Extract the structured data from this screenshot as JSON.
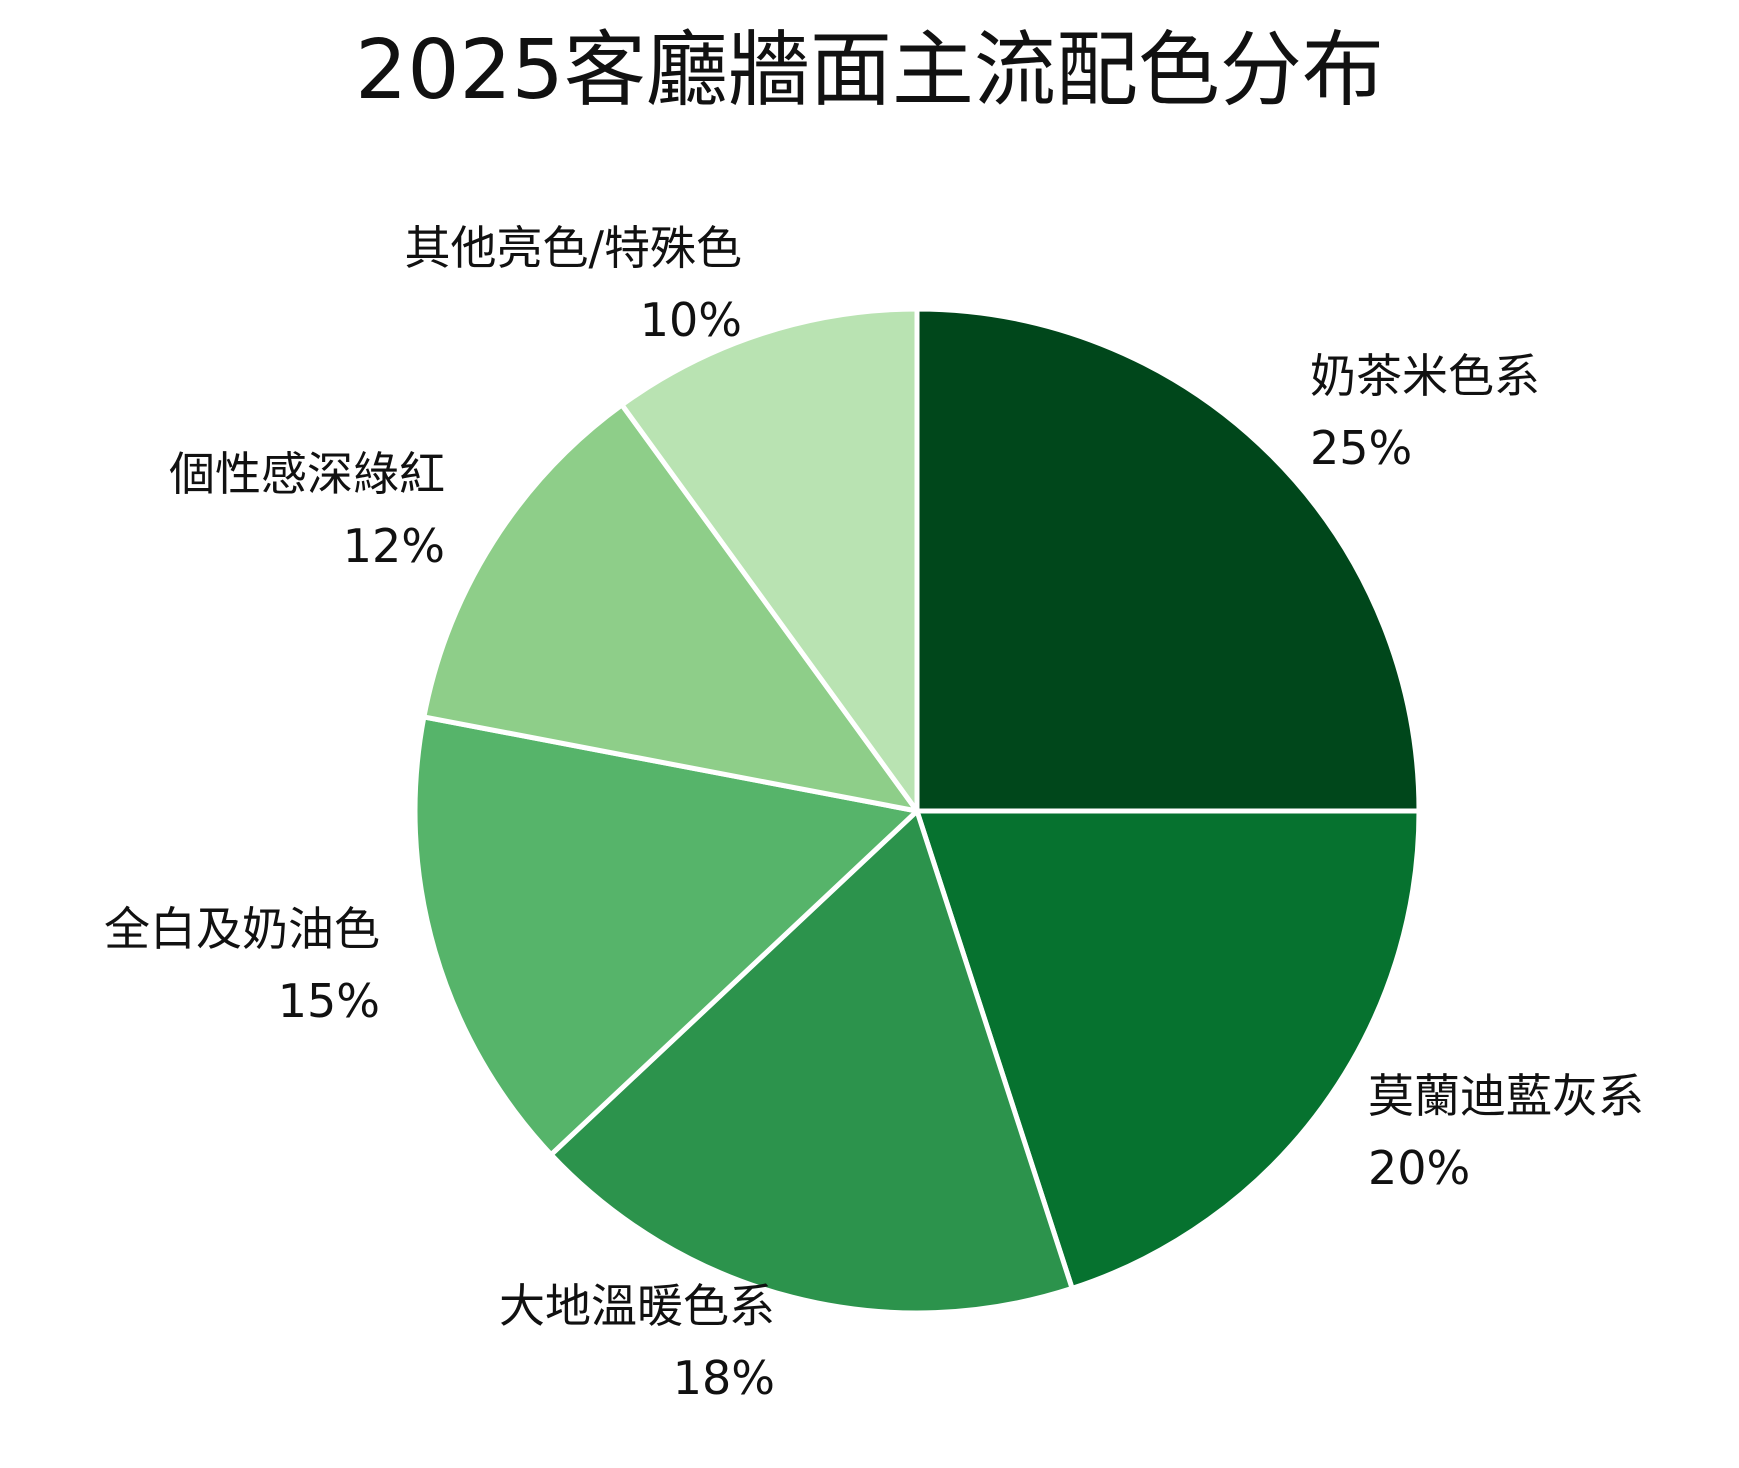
{
  "chart_data": {
    "type": "pie",
    "title": "2025客廳牆面主流配色分布",
    "unit": "%",
    "start_angle_deg": 90,
    "direction": "clockwise",
    "slices": [
      {
        "label": "奶茶米色系",
        "value": 25,
        "value_label": "25%",
        "color": "#00471b"
      },
      {
        "label": "莫蘭迪藍灰系",
        "value": 20,
        "value_label": "20%",
        "color": "#06722f"
      },
      {
        "label": "大地溫暖色系",
        "value": 18,
        "value_label": "18%",
        "color": "#2c934c"
      },
      {
        "label": "全白及奶油色",
        "value": 15,
        "value_label": "15%",
        "color": "#56b46a"
      },
      {
        "label": "個性感深綠紅",
        "value": 12,
        "value_label": "12%",
        "color": "#8ece89"
      },
      {
        "label": "其他亮色/特殊色",
        "value": 10,
        "value_label": "10%",
        "color": "#b9e3b2"
      }
    ],
    "legend": "none",
    "label_placement": "outside"
  }
}
